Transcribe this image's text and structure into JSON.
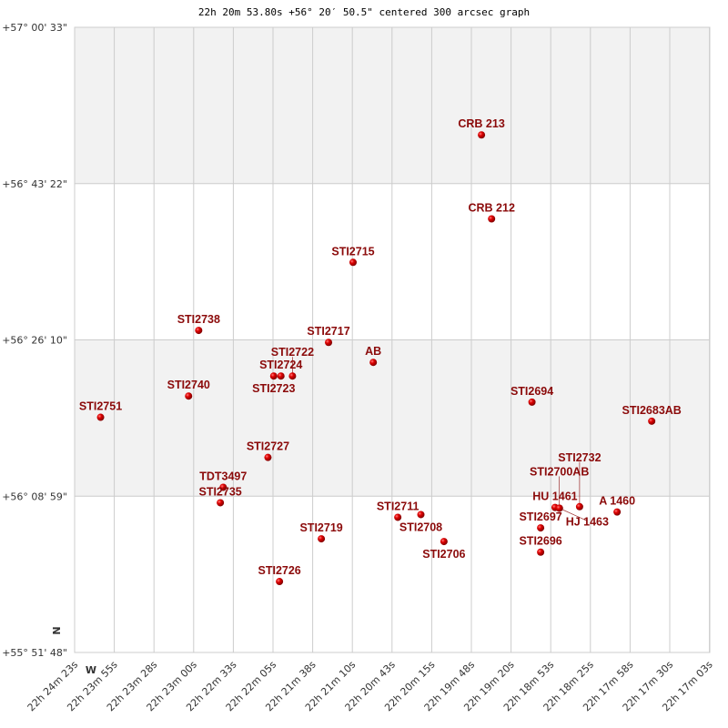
{
  "title": "22h 20m 53.80s +56° 20′ 50.5\" centered 300 arcsec graph",
  "dec_labels": [
    "+57° 00' 33\"",
    "+56° 43' 22\"",
    "+56° 26' 10\"",
    "+56° 08' 59\"",
    "+55° 51' 48\""
  ],
  "ra_labels": [
    "22h 24m 23s",
    "22h 23m 55s",
    "22h 23m 28s",
    "22h 23m 00s",
    "22h 22m 33s",
    "22h 22m 05s",
    "22h 21m 38s",
    "22h 21m 10s",
    "22h 20m 43s",
    "22h 20m 15s",
    "22h 19m 48s",
    "22h 19m 20s",
    "22h 18m 53s",
    "22h 18m 25s",
    "22h 17m 58s",
    "22h 17m 30s",
    "22h 17m 03s"
  ],
  "compass": {
    "north": "N",
    "west": "W"
  },
  "colors": {
    "star": "#cc0000",
    "label": "#8b0a0a",
    "band": "#f2f2f2",
    "grid": "#cccccc"
  },
  "stars": [
    {
      "name": "CRB 213",
      "ra": "22h 19m 41s",
      "dec": "+56° 48' 43\""
    },
    {
      "name": "CRB 212",
      "ra": "22h 19m 34s",
      "dec": "+56° 39' 29\""
    },
    {
      "name": "STI2715",
      "ra": "22h 21m 10s",
      "dec": "+56° 34' 42\""
    },
    {
      "name": "STI2738",
      "ra": "22h 22m 57s",
      "dec": "+56° 27' 13\""
    },
    {
      "name": "STI2717",
      "ra": "22h 21m 27s",
      "dec": "+56° 25' 54\""
    },
    {
      "name": "AB",
      "ra": "22h 20m 56s",
      "dec": "+56° 23' 42\""
    },
    {
      "name": "STI2724",
      "ra": "22h 22m 00s",
      "dec": "+56° 22' 12\""
    },
    {
      "name": "STI2723",
      "ra": "22h 22m 05s",
      "dec": "+56° 22' 12\""
    },
    {
      "name": "STI2722",
      "ra": "22h 21m 52s",
      "dec": "+56° 22' 12\""
    },
    {
      "name": "STI2740",
      "ra": "22h 23m 04s",
      "dec": "+56° 20' 00\""
    },
    {
      "name": "STI2751",
      "ra": "22h 24m 05s",
      "dec": "+56° 17' 40\""
    },
    {
      "name": "STI2694",
      "ra": "22h 19m 06s",
      "dec": "+56° 19' 20\""
    },
    {
      "name": "STI2683AB",
      "ra": "22h 17m 43s",
      "dec": "+56° 17' 14\""
    },
    {
      "name": "STI2727",
      "ra": "22h 22m 09s",
      "dec": "+56° 13' 15\""
    },
    {
      "name": "TDT3497",
      "ra": "22h 22m 40s",
      "dec": "+56° 09' 58\""
    },
    {
      "name": "STI2735",
      "ra": "22h 22m 42s",
      "dec": "+56° 08' 16\""
    },
    {
      "name": "STI2711",
      "ra": "22h 20m 39s",
      "dec": "+56° 06' 40\""
    },
    {
      "name": "STI2708",
      "ra": "22h 20m 23s",
      "dec": "+56° 06' 58\""
    },
    {
      "name": "STI2706",
      "ra": "22h 20m 07s",
      "dec": "+56° 04' 00\""
    },
    {
      "name": "STI2719",
      "ra": "22h 21m 32s",
      "dec": "+56° 04' 18\""
    },
    {
      "name": "STI2726",
      "ra": "22h 22m 01s",
      "dec": "+55° 59' 36\""
    },
    {
      "name": "STI2697",
      "ra": "22h 19m 00s",
      "dec": "+56° 05' 30\""
    },
    {
      "name": "STI2696",
      "ra": "22h 19m 00s",
      "dec": "+56° 02' 50\""
    },
    {
      "name": "A  1460",
      "ra": "22h 18m 07s",
      "dec": "+56° 07' 15\""
    },
    {
      "name": "HU 1461",
      "ra": "22h 18m 50s",
      "dec": "+56° 07' 45\""
    },
    {
      "name": "HJ 1463",
      "ra": "22h 18m 47s",
      "dec": "+56° 07' 40\""
    },
    {
      "name": "STI2700AB",
      "ra": "22h 18m 47s",
      "dec": "+56° 07' 40\""
    },
    {
      "name": "STI2732",
      "ra": "22h 18m 33s",
      "dec": "+56° 07' 50\""
    }
  ]
}
